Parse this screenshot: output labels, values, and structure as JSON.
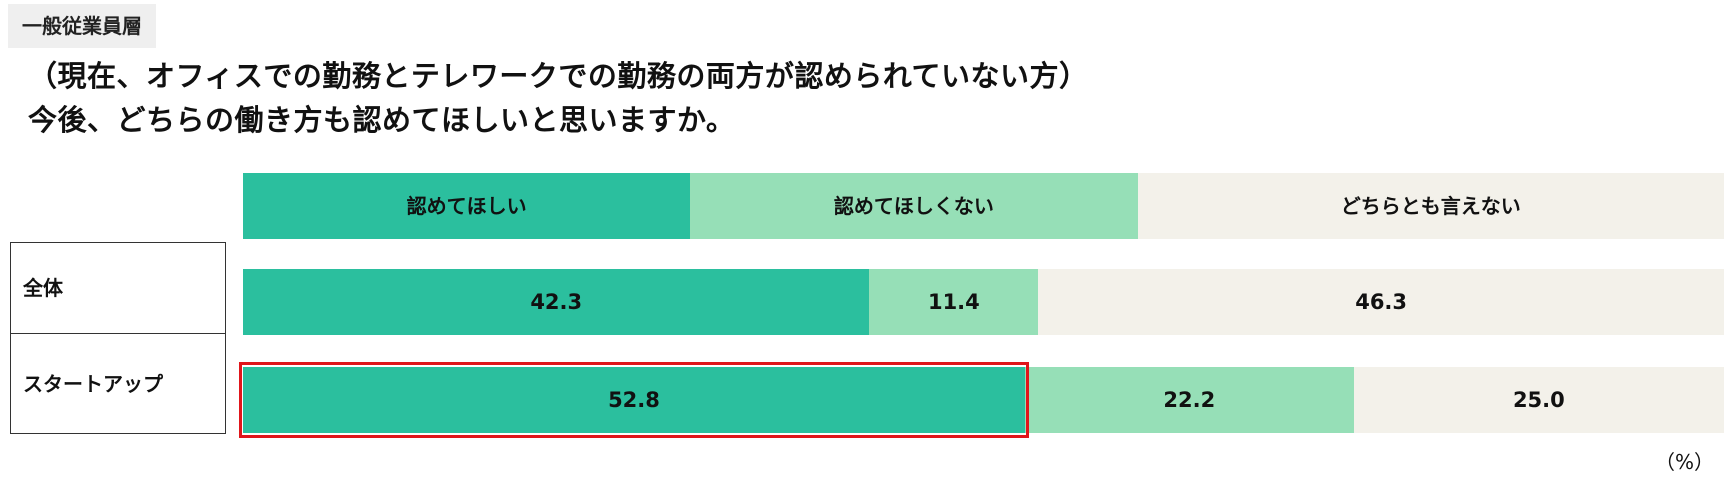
{
  "tag": "一般従業員層",
  "title_lines": [
    "（現在、オフィスでの勤務とテレワークでの勤務の両方が認められていない方）",
    "今後、どちらの働き方も認めてほしいと思いますか。"
  ],
  "unit": "（%）",
  "colors": {
    "want": "#2bbf9e",
    "not_want": "#96dfb7",
    "neither": "#f3f1ea",
    "highlight": "#e0161b"
  },
  "chart_data": {
    "type": "bar",
    "orientation": "horizontal",
    "stacked": true,
    "categories": [
      "全体",
      "スタートアップ"
    ],
    "series": [
      {
        "name": "認めてほしい",
        "values": [
          42.3,
          52.8
        ]
      },
      {
        "name": "認めてほしくない",
        "values": [
          11.4,
          22.2
        ]
      },
      {
        "name": "どちらとも言えない",
        "values": [
          46.3,
          25.0
        ]
      }
    ],
    "xlim": [
      0,
      100
    ],
    "highlighted": {
      "category": "スタートアップ",
      "series": "認めてほしい"
    }
  }
}
